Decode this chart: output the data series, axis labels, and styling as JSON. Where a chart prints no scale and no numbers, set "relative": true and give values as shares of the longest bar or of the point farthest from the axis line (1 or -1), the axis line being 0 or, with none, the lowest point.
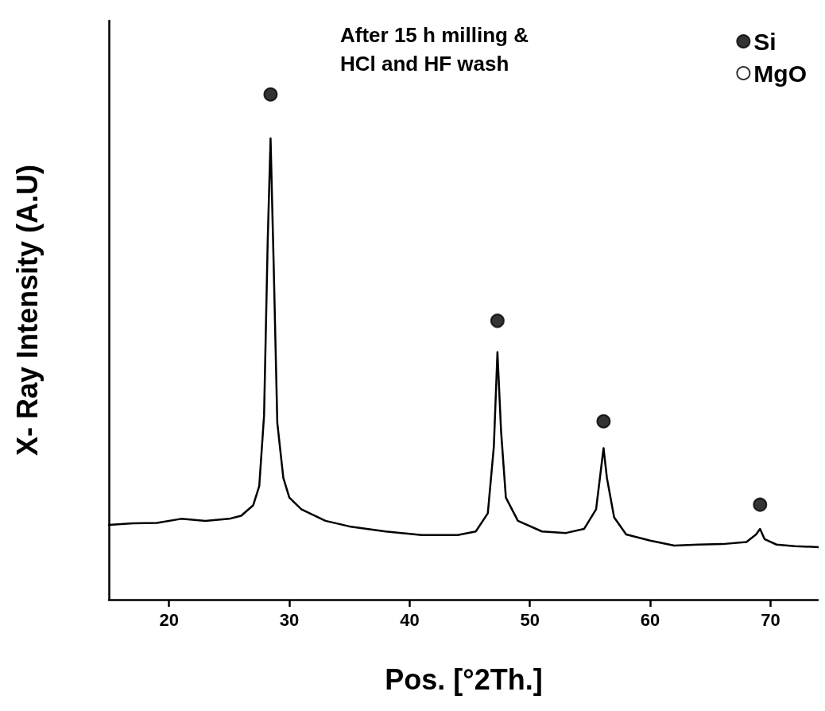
{
  "chart_data": {
    "type": "line",
    "relative": true,
    "xlabel": "Pos. [°2Th.]",
    "ylabel": "X- Ray Intensity (A.U)",
    "xlim": [
      15,
      74
    ],
    "xticks": [
      20,
      30,
      40,
      50,
      60,
      70
    ],
    "grid": false,
    "legend": "top right",
    "annotations": [
      "After 15 h milling &\nHCl and HF wash"
    ],
    "series": [
      {
        "color": "#000000",
        "marker": "none",
        "x": [
          15,
          17,
          19,
          21,
          23,
          25,
          26,
          27,
          27.5,
          27.9,
          28.2,
          28.44,
          28.7,
          29.0,
          29.5,
          30,
          31,
          33,
          35,
          38,
          41,
          44,
          45.5,
          46.5,
          47.0,
          47.3,
          47.6,
          48.0,
          49,
          51,
          53,
          54.5,
          55.5,
          55.9,
          56.12,
          56.4,
          57,
          58,
          60,
          62,
          64,
          66,
          68,
          68.8,
          69.13,
          69.5,
          70.5,
          72,
          74
        ],
        "values": [
          0.148,
          0.151,
          0.152,
          0.16,
          0.156,
          0.16,
          0.166,
          0.187,
          0.225,
          0.365,
          0.708,
          0.913,
          0.661,
          0.35,
          0.241,
          0.202,
          0.179,
          0.156,
          0.145,
          0.135,
          0.128,
          0.128,
          0.135,
          0.171,
          0.303,
          0.49,
          0.334,
          0.202,
          0.156,
          0.135,
          0.132,
          0.14,
          0.179,
          0.257,
          0.3,
          0.241,
          0.163,
          0.129,
          0.117,
          0.107,
          0.109,
          0.11,
          0.114,
          0.129,
          0.14,
          0.12,
          0.109,
          0.106,
          0.104
        ]
      },
      {
        "type": "scatter",
        "name": "Si",
        "color": "#000000",
        "marker": "circle",
        "x": [
          28.44,
          47.3,
          56.12,
          69.13
        ],
        "values": [
          1.0,
          0.552,
          0.353,
          0.188
        ]
      },
      {
        "type": "scatter",
        "name": "MgO",
        "color": "#ffffff",
        "marker": "circle"
      }
    ]
  }
}
